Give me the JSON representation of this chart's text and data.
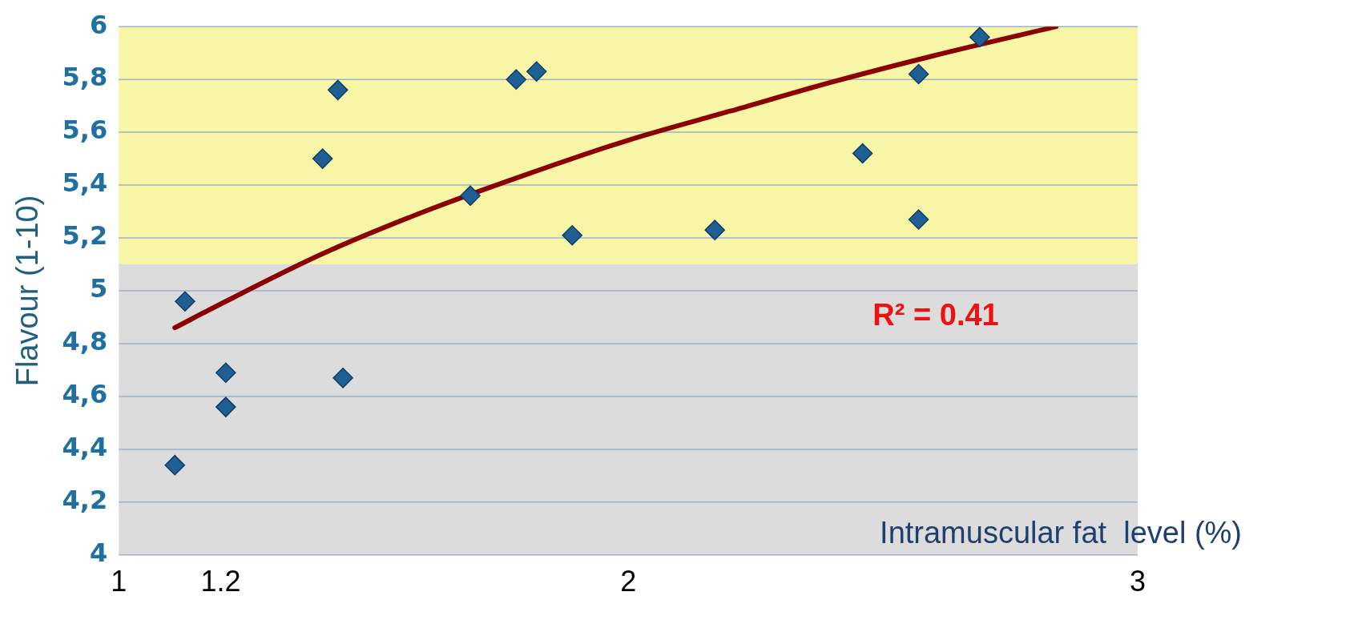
{
  "chart_data": {
    "type": "scatter",
    "xlabel": "Intramuscular fat  level (%)",
    "ylabel": "Flavour (1-10)",
    "xlim": [
      1,
      3
    ],
    "xticks": [
      1,
      1.2,
      2,
      3
    ],
    "ylim": [
      4,
      6
    ],
    "yticks": [
      {
        "value": 4,
        "label": "4"
      },
      {
        "value": 4.2,
        "label": "4,2"
      },
      {
        "value": 4.4,
        "label": "4,4"
      },
      {
        "value": 4.6,
        "label": "4,6"
      },
      {
        "value": 4.8,
        "label": "4,8"
      },
      {
        "value": 5,
        "label": "5"
      },
      {
        "value": 5.2,
        "label": "5,2"
      },
      {
        "value": 5.4,
        "label": "5,4"
      },
      {
        "value": 5.6,
        "label": "5,6"
      },
      {
        "value": 5.8,
        "label": "5,8"
      },
      {
        "value": 6,
        "label": "6"
      }
    ],
    "grid": "y",
    "marker": "diamond",
    "legend": false,
    "series": [
      {
        "color": "#1f5f94",
        "x": [
          1.11,
          1.13,
          1.21,
          1.21,
          1.4,
          1.43,
          1.44,
          1.69,
          1.78,
          1.82,
          1.89,
          2.17,
          2.46,
          2.57,
          2.57,
          2.69
        ],
        "values": [
          4.34,
          4.96,
          4.69,
          4.56,
          5.5,
          5.76,
          4.67,
          5.36,
          5.8,
          5.83,
          5.21,
          5.23,
          5.52,
          5.27,
          5.82,
          5.96
        ]
      },
      {
        "type": "line",
        "color": "#8b0000",
        "marker": "none",
        "x": [
          1.11,
          1.2,
          1.4,
          1.6,
          1.8,
          2.0,
          2.2,
          2.4,
          2.6,
          2.84
        ],
        "values": [
          4.86,
          4.95,
          5.14,
          5.3,
          5.44,
          5.57,
          5.68,
          5.79,
          5.89,
          6.0
        ]
      }
    ],
    "bands": [
      {
        "axis": "y",
        "from": 5.1,
        "to": 6,
        "color": "#f7f6a6"
      },
      {
        "axis": "y",
        "from": 4,
        "to": 5.1,
        "color": "#dcdcdc"
      }
    ],
    "annotations": [
      "R² = 0.41"
    ]
  }
}
